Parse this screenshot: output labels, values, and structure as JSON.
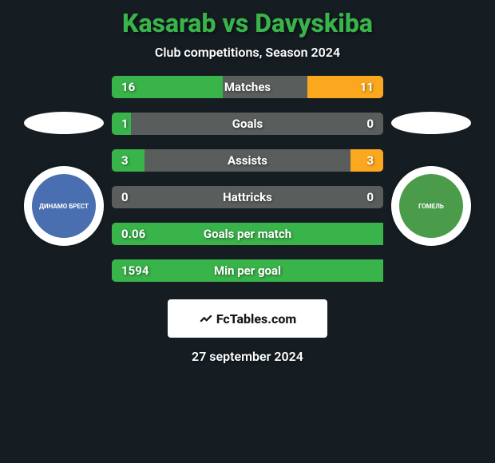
{
  "header": {
    "title": "Kasarab vs Davyskiba",
    "title_color": "#39b44a",
    "subtitle": "Club competitions, Season 2024",
    "subtitle_color": "#ffffff"
  },
  "background_color": "#151d23",
  "left_player": {
    "ellipse_color": "#ffffff",
    "club_bg": "#ffffff",
    "club_inner_bg": "#4a6fb0",
    "club_text_color": "#ffffff",
    "club_label": "ДИНАМО БРЕСТ"
  },
  "right_player": {
    "ellipse_color": "#ffffff",
    "club_bg": "#ffffff",
    "club_inner_bg": "#4a9b4a",
    "club_text_color": "#ffffff",
    "club_label": "ГОМЕЛЬ"
  },
  "bars": {
    "track_color": "#595e5c",
    "left_fill_color": "#39b44a",
    "right_fill_color": "#fba81e",
    "text_color": "#ffffff",
    "items": [
      {
        "label": "Matches",
        "left_val": "16",
        "right_val": "11",
        "left_pct": 41,
        "right_pct": 28
      },
      {
        "label": "Goals",
        "left_val": "1",
        "right_val": "0",
        "left_pct": 7,
        "right_pct": 0
      },
      {
        "label": "Assists",
        "left_val": "3",
        "right_val": "3",
        "left_pct": 12,
        "right_pct": 12
      },
      {
        "label": "Hattricks",
        "left_val": "0",
        "right_val": "0",
        "left_pct": 0,
        "right_pct": 0
      },
      {
        "label": "Goals per match",
        "left_val": "0.06",
        "right_val": "",
        "left_pct": 100,
        "right_pct": 0
      },
      {
        "label": "Min per goal",
        "left_val": "1594",
        "right_val": "",
        "left_pct": 100,
        "right_pct": 0
      }
    ]
  },
  "footer": {
    "badge_bg": "#ffffff",
    "badge_text_color": "#1a1a1a",
    "badge_text": "FcTables.com",
    "date": "27 september 2024",
    "date_color": "#ffffff"
  }
}
